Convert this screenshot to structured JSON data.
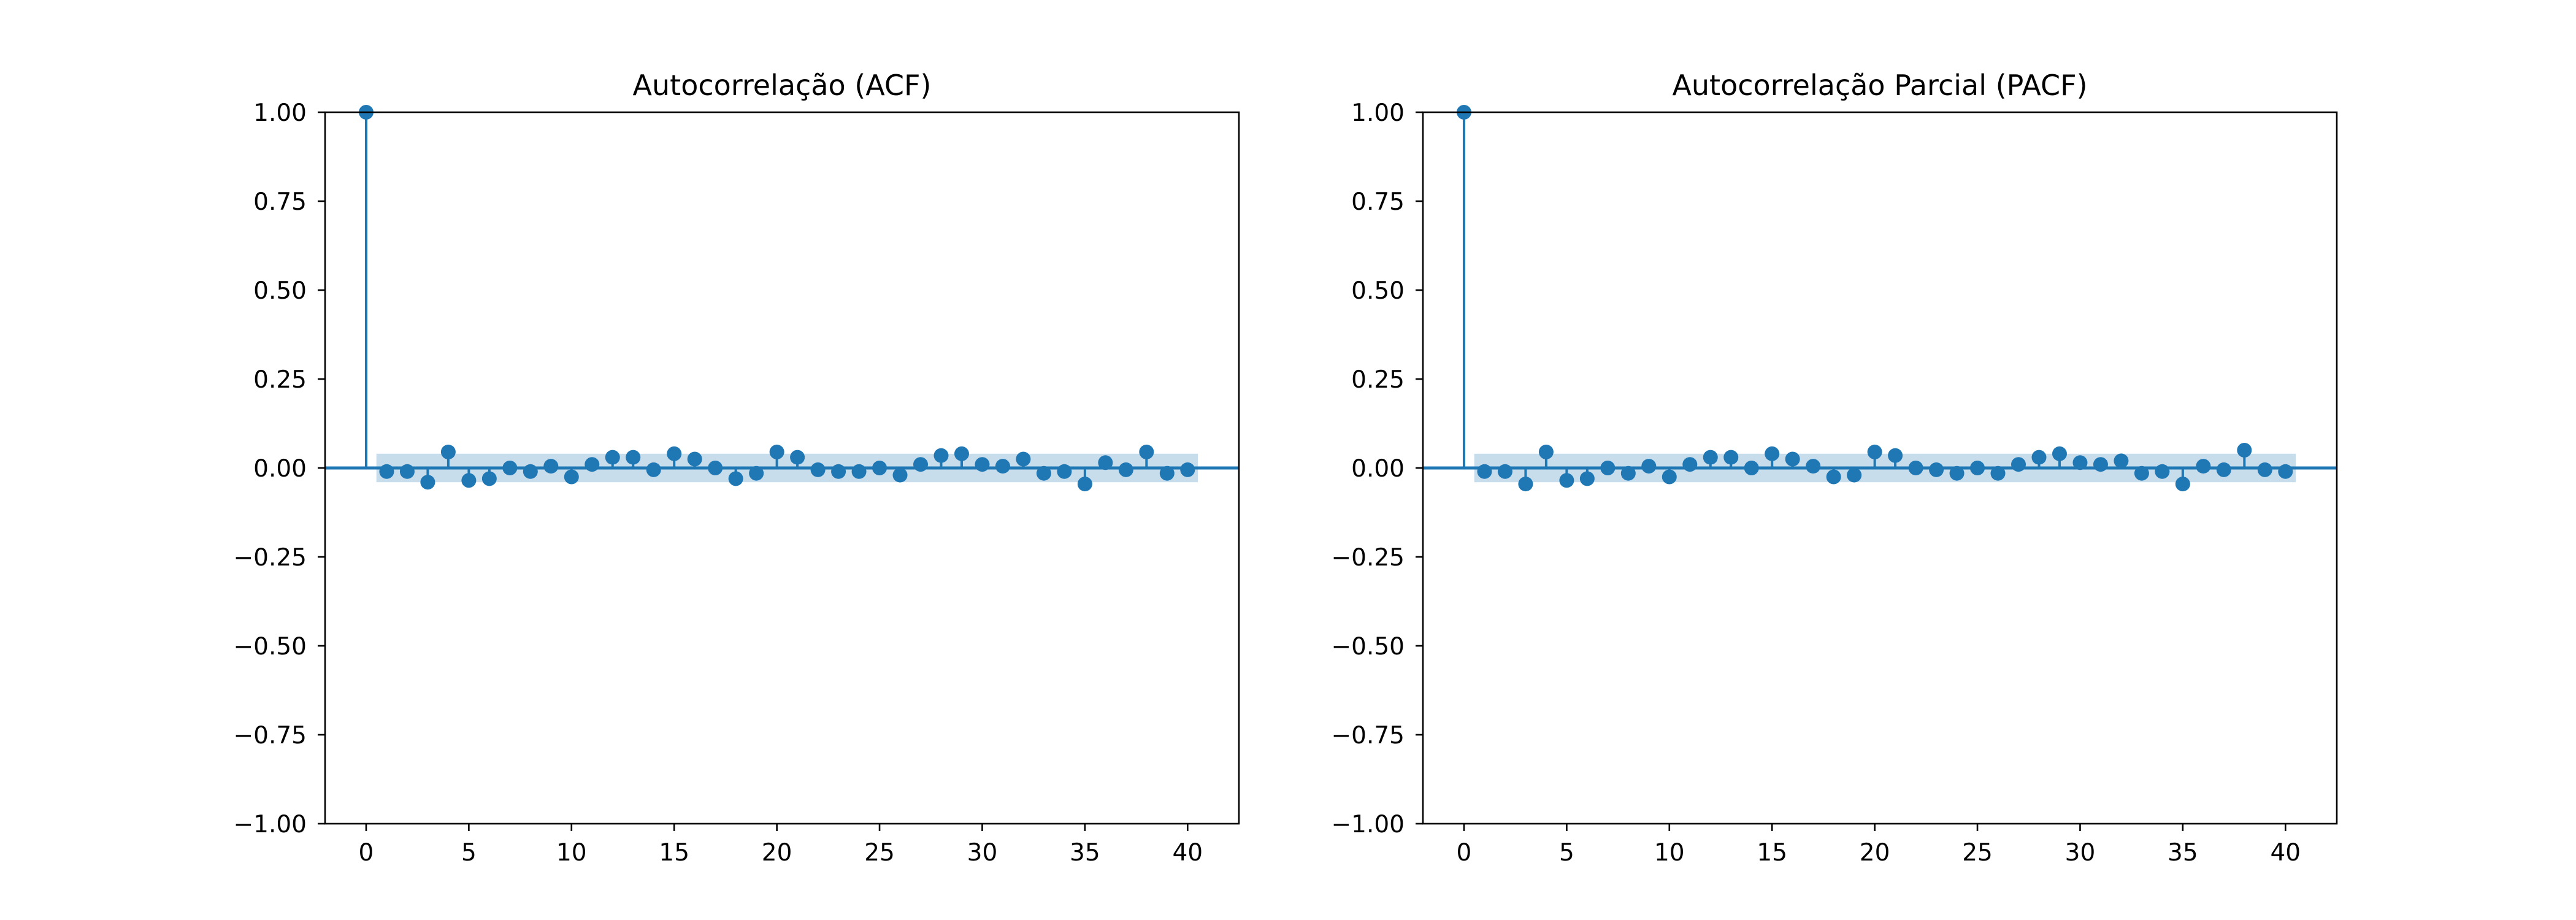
{
  "chart_data": [
    {
      "type": "stem",
      "title": "Autocorrelação (ACF)",
      "xlabel": "",
      "ylabel": "",
      "xlim": [
        -2,
        42.5
      ],
      "ylim": [
        -1.0,
        1.0
      ],
      "x_ticks": [
        0,
        5,
        10,
        15,
        20,
        25,
        30,
        35,
        40
      ],
      "x_tick_labels": [
        "0",
        "5",
        "10",
        "15",
        "20",
        "25",
        "30",
        "35",
        "40"
      ],
      "y_ticks": [
        -1.0,
        -0.75,
        -0.5,
        -0.25,
        0.0,
        0.25,
        0.5,
        0.75,
        1.0
      ],
      "y_tick_labels": [
        "−1.00",
        "−0.75",
        "−0.50",
        "−0.25",
        "0.00",
        "0.25",
        "0.50",
        "0.75",
        "1.00"
      ],
      "grid": false,
      "color": "#1f77b4",
      "confidence_band": {
        "lower": -0.04,
        "upper": 0.04,
        "color": "#1f77b4",
        "opacity": 0.25,
        "x_from": 0.5,
        "x_to": 40.5
      },
      "lags": [
        0,
        1,
        2,
        3,
        4,
        5,
        6,
        7,
        8,
        9,
        10,
        11,
        12,
        13,
        14,
        15,
        16,
        17,
        18,
        19,
        20,
        21,
        22,
        23,
        24,
        25,
        26,
        27,
        28,
        29,
        30,
        31,
        32,
        33,
        34,
        35,
        36,
        37,
        38,
        39,
        40
      ],
      "values": [
        1.0,
        -0.01,
        -0.01,
        -0.04,
        0.045,
        -0.035,
        -0.03,
        0.0,
        -0.01,
        0.005,
        -0.025,
        0.01,
        0.03,
        0.03,
        -0.005,
        0.04,
        0.025,
        0.0,
        -0.03,
        -0.015,
        0.045,
        0.03,
        -0.005,
        -0.01,
        -0.01,
        0.0,
        -0.02,
        0.01,
        0.035,
        0.04,
        0.01,
        0.005,
        0.025,
        -0.015,
        -0.01,
        -0.045,
        0.015,
        -0.005,
        0.045,
        -0.015,
        -0.005
      ]
    },
    {
      "type": "stem",
      "title": "Autocorrelação Parcial (PACF)",
      "xlabel": "",
      "ylabel": "",
      "xlim": [
        -2,
        42.5
      ],
      "ylim": [
        -1.0,
        1.0
      ],
      "x_ticks": [
        0,
        5,
        10,
        15,
        20,
        25,
        30,
        35,
        40
      ],
      "x_tick_labels": [
        "0",
        "5",
        "10",
        "15",
        "20",
        "25",
        "30",
        "35",
        "40"
      ],
      "y_ticks": [
        -1.0,
        -0.75,
        -0.5,
        -0.25,
        0.0,
        0.25,
        0.5,
        0.75,
        1.0
      ],
      "y_tick_labels": [
        "−1.00",
        "−0.75",
        "−0.50",
        "−0.25",
        "0.00",
        "0.25",
        "0.50",
        "0.75",
        "1.00"
      ],
      "grid": false,
      "color": "#1f77b4",
      "confidence_band": {
        "lower": -0.04,
        "upper": 0.04,
        "color": "#1f77b4",
        "opacity": 0.25,
        "x_from": 0.5,
        "x_to": 40.5
      },
      "lags": [
        0,
        1,
        2,
        3,
        4,
        5,
        6,
        7,
        8,
        9,
        10,
        11,
        12,
        13,
        14,
        15,
        16,
        17,
        18,
        19,
        20,
        21,
        22,
        23,
        24,
        25,
        26,
        27,
        28,
        29,
        30,
        31,
        32,
        33,
        34,
        35,
        36,
        37,
        38,
        39,
        40
      ],
      "values": [
        1.0,
        -0.01,
        -0.01,
        -0.045,
        0.045,
        -0.035,
        -0.03,
        0.0,
        -0.015,
        0.005,
        -0.025,
        0.01,
        0.03,
        0.03,
        0.0,
        0.04,
        0.025,
        0.005,
        -0.025,
        -0.02,
        0.045,
        0.035,
        0.0,
        -0.005,
        -0.015,
        0.0,
        -0.015,
        0.01,
        0.03,
        0.04,
        0.015,
        0.01,
        0.02,
        -0.015,
        -0.01,
        -0.045,
        0.005,
        -0.005,
        0.05,
        -0.005,
        -0.01
      ]
    }
  ]
}
